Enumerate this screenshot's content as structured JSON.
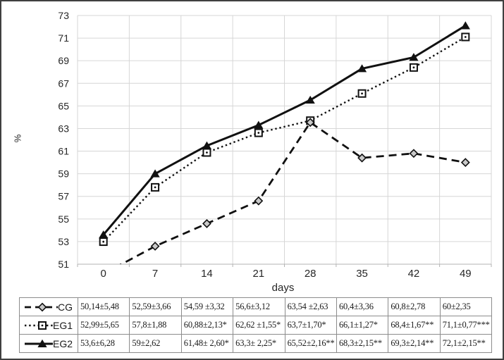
{
  "chart_data": {
    "type": "line",
    "title": "",
    "xlabel": "days",
    "ylabel": "%",
    "categories": [
      "0",
      "7",
      "14",
      "21",
      "28",
      "35",
      "42",
      "49"
    ],
    "ylim": [
      51,
      73
    ],
    "ytick_step": 2,
    "grid": true,
    "legend_position": "table-left-column",
    "series": [
      {
        "name": "CG",
        "values": [
          50.14,
          52.59,
          54.59,
          56.6,
          63.54,
          60.4,
          60.8,
          60
        ],
        "line_style": "dashed",
        "marker": "diamond",
        "color": "#111111",
        "marker_fill": "#c9c9c9"
      },
      {
        "name": "EG1",
        "values": [
          52.99,
          57.8,
          60.88,
          62.62,
          63.7,
          66.1,
          68.4,
          71.1
        ],
        "line_style": "dotted",
        "marker": "square-dot",
        "color": "#111111",
        "marker_fill": "#ffffff"
      },
      {
        "name": "EG2",
        "values": [
          53.6,
          59,
          61.48,
          63.3,
          65.52,
          68.3,
          69.3,
          72.1
        ],
        "line_style": "solid",
        "marker": "triangle",
        "color": "#111111",
        "marker_fill": "#111111"
      }
    ]
  },
  "table": {
    "rows": [
      {
        "label": "CG",
        "cells": [
          "50,14±5,48",
          "52,59±3,66",
          "54,59 ±3,32",
          "56,6±3,12",
          "63,54 ±2,63",
          "60,4±3,36",
          "60,8±2,78",
          "60±2,35"
        ]
      },
      {
        "label": "EG1",
        "cells": [
          "52,99±5,65",
          "57,8±1,88",
          "60,88±2,13*",
          "62,62 ±1,55*",
          "63,7±1,70*",
          "66,1±1,27*",
          "68,4±1,67**",
          "71,1±0,77***"
        ]
      },
      {
        "label": "EG2",
        "cells": [
          "53,6±6,28",
          "59±2,62",
          "61,48± 2,60*",
          "63,3± 2,25*",
          "65,52±2,16**",
          "68,3±2,15**",
          "69,3±2,14**",
          "72,1±2,15**"
        ]
      }
    ]
  },
  "colors": {
    "figure_border": "#3f3f3f",
    "gridline": "#d6d6d6",
    "axis": "#b3b3b3",
    "table_border": "#8c8c8c",
    "text": "#262626",
    "line": "#111111",
    "diamond_fill": "#c9c9c9"
  }
}
